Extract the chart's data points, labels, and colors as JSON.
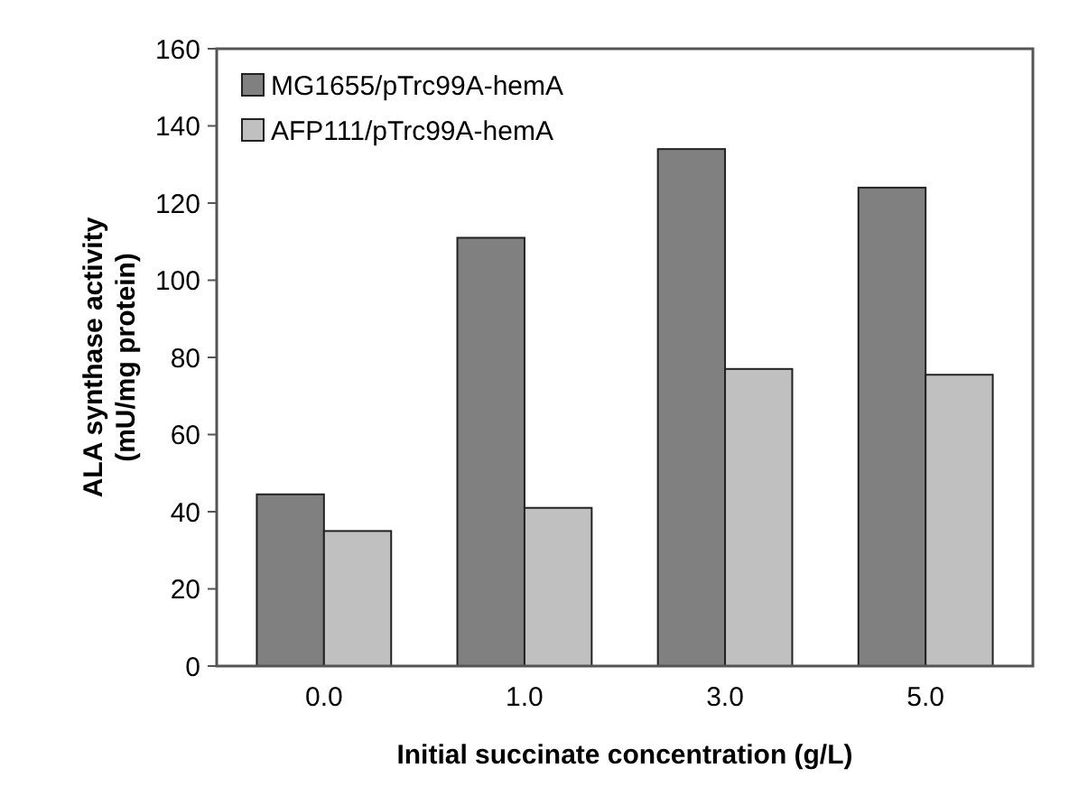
{
  "chart_data": {
    "type": "bar",
    "xlabel": "Initial succinate concentration (g/L)",
    "ylabel": "ALA synthase activity (mU/mg protein)",
    "categories": [
      "0.0",
      "1.0",
      "3.0",
      "5.0"
    ],
    "series": [
      {
        "name": "MG1655/pTrc99A-hemA",
        "color": "#808080",
        "values": [
          44.5,
          111,
          134,
          124
        ]
      },
      {
        "name": "AFP111/pTrc99A-hemA",
        "color": "#c0c0c0",
        "values": [
          35,
          41,
          77,
          75.5
        ]
      }
    ],
    "ylim": [
      0,
      160
    ],
    "yticks": [
      0,
      20,
      40,
      60,
      80,
      100,
      120,
      140,
      160
    ],
    "grid": false,
    "legend": "top left"
  }
}
